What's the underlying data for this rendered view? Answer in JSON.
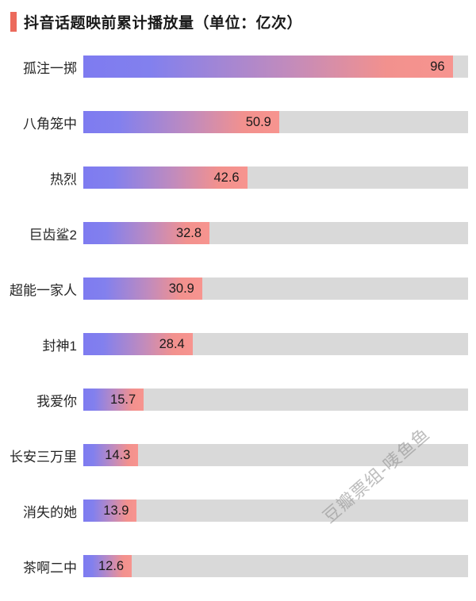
{
  "header": {
    "title": "抖音话题映前累计播放量（单位：亿次）",
    "marker_color": "#ec6a5c"
  },
  "watermark": "豆瓣票组-唛鱼鱼",
  "chart_data": {
    "type": "bar",
    "orientation": "horizontal",
    "title": "抖音话题映前累计播放量（单位：亿次）",
    "unit": "亿次",
    "categories": [
      "孤注一掷",
      "八角笼中",
      "热烈",
      "巨齿鲨2",
      "超能一家人",
      "封神1",
      "我爱你",
      "长安三万里",
      "消失的她",
      "茶啊二中"
    ],
    "values": [
      96,
      50.9,
      42.6,
      32.8,
      30.9,
      28.4,
      15.7,
      14.3,
      13.9,
      12.6
    ],
    "value_labels": [
      "96",
      "50.9",
      "42.6",
      "32.8",
      "30.9",
      "28.4",
      "15.7",
      "14.3",
      "13.9",
      "12.6"
    ],
    "xlim": [
      0,
      100
    ],
    "grid": false,
    "legend": false,
    "bar_gradient": [
      "#7e7bf0",
      "#f7948f"
    ],
    "track_color": "#d9d9d9"
  }
}
